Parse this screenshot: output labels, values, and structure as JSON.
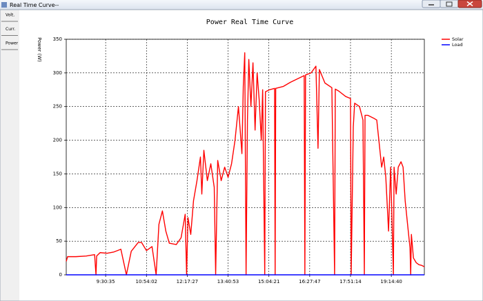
{
  "window": {
    "title": "Real Time Curve--"
  },
  "sidebar": {
    "buttons": [
      "Volt.",
      "Curr.",
      "Power"
    ]
  },
  "chart_data": {
    "type": "line",
    "title": "Power Real Time Curve",
    "y_label": "Power (W)",
    "xlim": [
      490,
      1222.2
    ],
    "ylim": [
      0,
      350
    ],
    "xticks": [
      {
        "value": 570.58,
        "label": "9:30:35"
      },
      {
        "value": 654.03,
        "label": "10:54:02"
      },
      {
        "value": 737.45,
        "label": "12:17:27"
      },
      {
        "value": 820.88,
        "label": "13:40:53"
      },
      {
        "value": 904.35,
        "label": "15:04:21"
      },
      {
        "value": 987.78,
        "label": "16:27:47"
      },
      {
        "value": 1071.23,
        "label": "17:51:14"
      },
      {
        "value": 1154.67,
        "label": "19:14:40"
      }
    ],
    "yticks": [
      0,
      50,
      100,
      150,
      200,
      250,
      300,
      350
    ],
    "grid": true,
    "legend": "right",
    "series": [
      {
        "name": "Solar",
        "color": "#ff0000",
        "x": [
          490,
          492.8,
          509.8,
          531,
          548,
          550.8,
          552.2,
          559.3,
          573.4,
          587.6,
          601.7,
          613,
          622.9,
          637.1,
          644.1,
          654,
          665.4,
          673.8,
          679.5,
          686.6,
          693.6,
          700.7,
          714.9,
          724.8,
          733.2,
          736.1,
          738.9,
          744.6,
          750.2,
          757.3,
          764.4,
          767.2,
          771.4,
          778.5,
          785.6,
          792.6,
          795.5,
          799.7,
          806.8,
          813.9,
          820.9,
          828,
          835.1,
          842.1,
          849.2,
          852,
          855,
          857.7,
          860.5,
          863.3,
          867.6,
          871.8,
          876.1,
          880.3,
          884.5,
          888.8,
          891.6,
          895.9,
          897.3,
          905.8,
          916,
          917.1,
          918.3,
          934.1,
          948.2,
          962.3,
          976.5,
          977.9,
          979.3,
          990.6,
          1000.5,
          1004.8,
          1007.6,
          1018.9,
          1033.1,
          1038.7,
          1040.1,
          1047.2,
          1061.3,
          1071.2,
          1072.6,
          1076.9,
          1079.7,
          1089.6,
          1096.7,
          1099.5,
          1100.9,
          1106.6,
          1117.9,
          1124.9,
          1129.2,
          1134.9,
          1139.1,
          1143.4,
          1149,
          1153.3,
          1158.9,
          1160.3,
          1164.6,
          1168.8,
          1174.5,
          1178.7,
          1183,
          1188.6,
          1192.9,
          1194.3,
          1195.7,
          1199.9,
          1205.6,
          1211.2,
          1216.9,
          1222.2
        ],
        "values": [
          20,
          27,
          27,
          28,
          30,
          0,
          28,
          33,
          32,
          34,
          38,
          0,
          35,
          48,
          48,
          36,
          42,
          0,
          75,
          95,
          65,
          47,
          45,
          55,
          90,
          0,
          85,
          60,
          110,
          140,
          175,
          120,
          185,
          140,
          165,
          130,
          0,
          170,
          140,
          160,
          145,
          165,
          200,
          250,
          180,
          280,
          330,
          0,
          230,
          320,
          250,
          315,
          215,
          300,
          260,
          200,
          275,
          0,
          272,
          275,
          277,
          0,
          277,
          280,
          286,
          291,
          296,
          0,
          297,
          300,
          310,
          188,
          305,
          285,
          278,
          0,
          276,
          273,
          265,
          262,
          0,
          220,
          255,
          250,
          230,
          0,
          237,
          237,
          233,
          230,
          200,
          160,
          175,
          145,
          65,
          160,
          0,
          160,
          120,
          160,
          168,
          160,
          110,
          70,
          40,
          0,
          60,
          25,
          18,
          15,
          14,
          12
        ]
      },
      {
        "name": "Load",
        "color": "#0000ff",
        "x": [
          490,
          1222.2
        ],
        "values": [
          0,
          0
        ]
      }
    ]
  }
}
